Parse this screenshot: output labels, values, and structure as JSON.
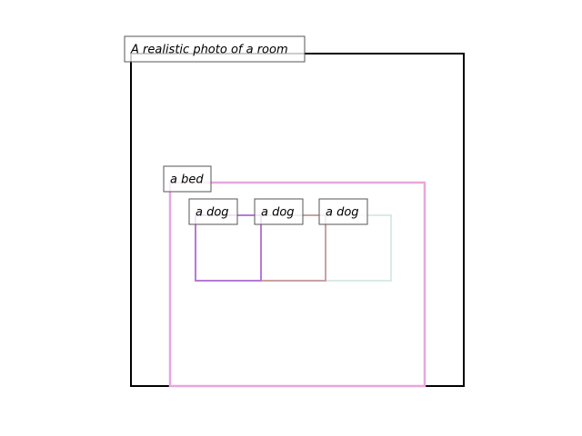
{
  "scene": {
    "label": "A realistic photo of a room",
    "border_color": "#000000"
  },
  "bed": {
    "label": "a bed",
    "border_color": "#e8a7db"
  },
  "dogs": [
    {
      "label": "a dog",
      "border_color": "#b67ad6"
    },
    {
      "label": "a dog",
      "border_color": "#c8a2a5"
    },
    {
      "label": "a dog",
      "border_color": "#d9ebe5"
    }
  ]
}
